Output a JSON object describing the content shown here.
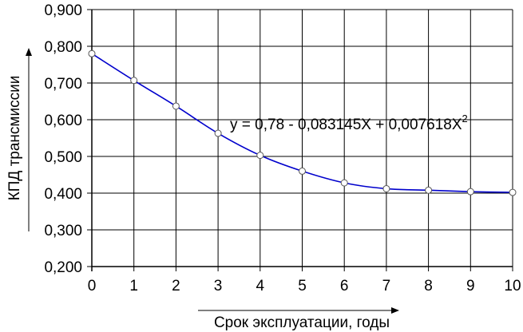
{
  "chart_data": {
    "type": "line",
    "xlabel": "Срок эксплуатации, годы",
    "ylabel": "КПД трансмиссии",
    "x": [
      0,
      1,
      2,
      3,
      4,
      5,
      6,
      7,
      8,
      9,
      10
    ],
    "series": [
      {
        "values": [
          0.78,
          0.707,
          0.637,
          0.563,
          0.503,
          0.46,
          0.428,
          0.412,
          0.408,
          0.404,
          0.402
        ],
        "color": "#0000cc",
        "marker": "circle",
        "smooth": true
      }
    ],
    "xlim": [
      0,
      10
    ],
    "ylim": [
      0.2,
      0.9
    ],
    "x_ticks": [
      0,
      1,
      2,
      3,
      4,
      5,
      6,
      7,
      8,
      9,
      10
    ],
    "y_ticks": [
      0.2,
      0.3,
      0.4,
      0.5,
      0.6,
      0.7,
      0.8,
      0.9
    ],
    "x_tick_labels": [
      "0",
      "1",
      "2",
      "3",
      "4",
      "5",
      "6",
      "7",
      "8",
      "9",
      "10"
    ],
    "y_tick_labels": [
      "0,200",
      "0,300",
      "0,400",
      "0,500",
      "0,600",
      "0,700",
      "0,800",
      "0,900"
    ],
    "annotation": {
      "text": "y = 0,78 - 0,083145X + 0,007618X",
      "superscript": "2"
    },
    "grid": true,
    "legend": "none"
  }
}
